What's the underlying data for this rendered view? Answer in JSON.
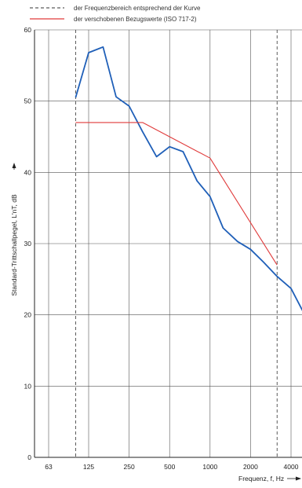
{
  "chart_data": {
    "type": "line",
    "title": "",
    "legend": {
      "placement": "top-left",
      "entries": [
        {
          "text": "der Frequenzbereich entsprechend der Kurve",
          "style": "dashed",
          "color": "#333333"
        },
        {
          "text": "der verschobenen Bezugswerte (ISO 717-2)",
          "style": "solid",
          "color": "#e03b3b"
        }
      ]
    },
    "xlabel": "Frequenz, f, Hz",
    "ylabel": "Standard-Trittschallpegel, L'nT, dB",
    "x_scale": "log",
    "x_ticks": [
      "63",
      "125",
      "250",
      "500",
      "1000",
      "2000",
      "4000"
    ],
    "x_tick_values": [
      63,
      125,
      250,
      500,
      1000,
      2000,
      4000
    ],
    "y_ticks": [
      "0",
      "10",
      "20",
      "30",
      "40",
      "50",
      "60"
    ],
    "y_tick_values": [
      0,
      10,
      20,
      30,
      40,
      50,
      60
    ],
    "ylim": [
      0,
      60
    ],
    "xlim": [
      50,
      4600
    ],
    "grid": true,
    "range_markers": [
      100,
      3150
    ],
    "series": [
      {
        "color": "#1f5fb8",
        "x": [
          100,
          125,
          160,
          200,
          250,
          315,
          400,
          500,
          630,
          800,
          1000,
          1250,
          1600,
          2000,
          2500,
          3150,
          4000,
          5000
        ],
        "y": [
          50.5,
          56.8,
          57.6,
          50.6,
          49.3,
          45.7,
          42.2,
          43.6,
          42.9,
          38.8,
          36.6,
          32.2,
          30.3,
          29.2,
          27.4,
          25.4,
          23.7,
          20.2
        ]
      },
      {
        "color": "#e03b3b",
        "x": [
          100,
          315,
          1000,
          3150
        ],
        "y": [
          47,
          47,
          42,
          27
        ]
      }
    ]
  }
}
